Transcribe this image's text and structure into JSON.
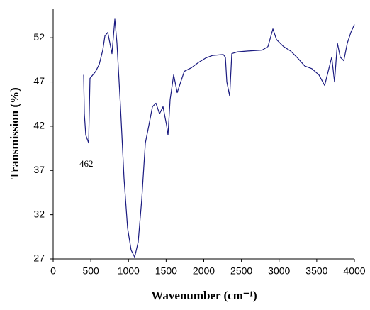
{
  "chart_data": {
    "type": "line",
    "x_label": "Wavenumber (cm⁻¹)",
    "y_label": "Transmission (%)",
    "annotation": "462",
    "x": [
      405,
      414,
      433,
      471,
      489,
      565,
      612,
      659,
      687,
      725,
      753,
      781,
      819,
      847,
      894,
      941,
      988,
      1035,
      1082,
      1129,
      1176,
      1224,
      1271,
      1318,
      1365,
      1412,
      1459,
      1506,
      1525,
      1553,
      1600,
      1647,
      1694,
      1741,
      1835,
      1929,
      2024,
      2118,
      2259,
      2287,
      2306,
      2344,
      2372,
      2447,
      2588,
      2776,
      2852,
      2918,
      2965,
      3059,
      3153,
      3247,
      3341,
      3435,
      3529,
      3605,
      3652,
      3699,
      3736,
      3774,
      3812,
      3859,
      3906,
      3953,
      4000
    ],
    "series": [
      {
        "color": "#1a1a80",
        "values": [
          47.8,
          43.4,
          41.0,
          40.1,
          47.4,
          48.2,
          49.0,
          50.6,
          52.2,
          52.6,
          51.4,
          50.2,
          54.1,
          51.4,
          44.2,
          36.1,
          30.5,
          28.0,
          27.2,
          28.9,
          33.7,
          40.1,
          42.1,
          44.2,
          44.6,
          43.4,
          44.2,
          42.1,
          41.0,
          45.0,
          47.8,
          45.8,
          47.0,
          48.2,
          48.6,
          49.2,
          49.7,
          50.0,
          50.1,
          49.8,
          47.0,
          45.4,
          50.2,
          50.4,
          50.5,
          50.6,
          51.0,
          53.0,
          51.8,
          51.0,
          50.5,
          49.7,
          48.8,
          48.5,
          47.8,
          46.6,
          48.2,
          49.8,
          47.0,
          51.4,
          49.8,
          49.4,
          51.4,
          52.6,
          53.5
        ]
      }
    ],
    "xlim": [
      0,
      4000
    ],
    "xticks": [
      0,
      500,
      1000,
      1500,
      2000,
      2500,
      3000,
      3500,
      4000
    ],
    "ylim": [
      27,
      55.3
    ],
    "yticks": [
      27,
      32,
      37,
      42,
      47,
      52
    ],
    "grid": false
  }
}
